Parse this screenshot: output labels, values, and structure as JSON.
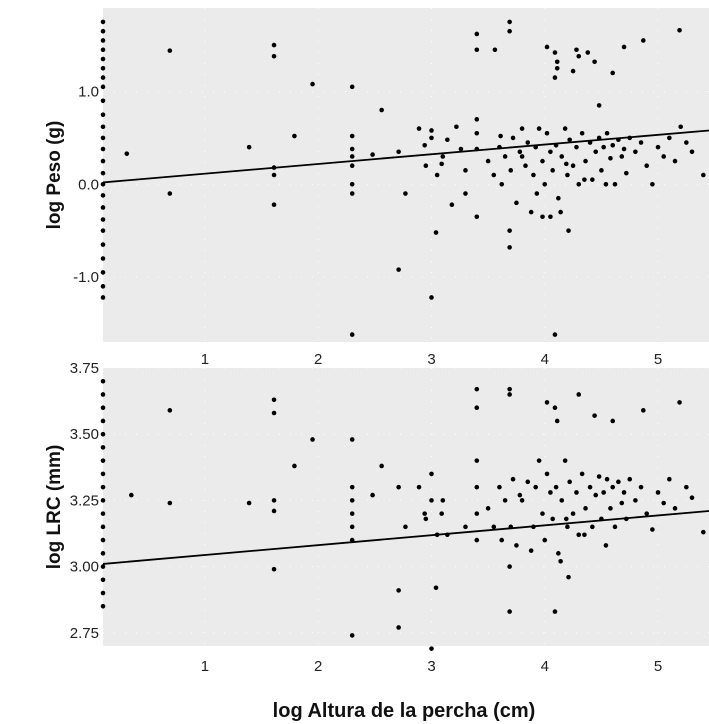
{
  "chart_data": [
    {
      "type": "scatter",
      "title": "",
      "xlabel": "",
      "ylabel": "log Peso (g)",
      "xlim": [
        0.1,
        5.45
      ],
      "ylim": [
        -1.7,
        1.9
      ],
      "x_ticks": [
        1,
        2,
        3,
        4,
        5
      ],
      "x_tick_labels": [
        "1",
        "2",
        "3",
        "4",
        "5"
      ],
      "y_ticks": [
        -1.0,
        0.0,
        1.0
      ],
      "y_tick_labels": [
        "-1.0",
        "0.0",
        "1.0"
      ],
      "grid": true,
      "background": "#ebebeb",
      "point_color": "#000000",
      "fit_line": {
        "x": [
          0.1,
          5.45
        ],
        "y": [
          0.02,
          0.58
        ]
      },
      "points": [
        [
          0.1,
          1.75
        ],
        [
          0.1,
          1.65
        ],
        [
          0.1,
          1.55
        ],
        [
          0.1,
          1.45
        ],
        [
          0.1,
          1.35
        ],
        [
          0.1,
          1.25
        ],
        [
          0.1,
          1.15
        ],
        [
          0.1,
          1.05
        ],
        [
          0.1,
          0.9
        ],
        [
          0.1,
          0.75
        ],
        [
          0.1,
          0.62
        ],
        [
          0.1,
          0.5
        ],
        [
          0.1,
          0.38
        ],
        [
          0.1,
          0.25
        ],
        [
          0.1,
          0.12
        ],
        [
          0.1,
          0.0
        ],
        [
          0.1,
          -0.12
        ],
        [
          0.1,
          -0.25
        ],
        [
          0.1,
          -0.38
        ],
        [
          0.1,
          -0.5
        ],
        [
          0.1,
          -0.65
        ],
        [
          0.1,
          -0.8
        ],
        [
          0.1,
          -0.95
        ],
        [
          0.1,
          -1.1
        ],
        [
          0.1,
          -1.22
        ],
        [
          0.31,
          0.33
        ],
        [
          0.69,
          1.44
        ],
        [
          0.69,
          -0.1
        ],
        [
          1.39,
          0.4
        ],
        [
          1.61,
          1.5
        ],
        [
          1.61,
          1.38
        ],
        [
          1.61,
          0.18
        ],
        [
          1.61,
          0.1
        ],
        [
          1.61,
          -0.22
        ],
        [
          1.79,
          0.52
        ],
        [
          1.95,
          1.08
        ],
        [
          2.3,
          1.05
        ],
        [
          2.3,
          0.52
        ],
        [
          2.3,
          0.38
        ],
        [
          2.3,
          0.3
        ],
        [
          2.3,
          0.2
        ],
        [
          2.3,
          0.0
        ],
        [
          2.3,
          -0.1
        ],
        [
          2.3,
          -1.62
        ],
        [
          2.48,
          0.32
        ],
        [
          2.56,
          0.8
        ],
        [
          2.71,
          0.35
        ],
        [
          2.71,
          -0.92
        ],
        [
          2.77,
          -0.1
        ],
        [
          2.89,
          0.6
        ],
        [
          2.94,
          0.42
        ],
        [
          3.0,
          0.58
        ],
        [
          3.0,
          0.5
        ],
        [
          3.0,
          -1.22
        ],
        [
          3.04,
          -0.52
        ],
        [
          3.09,
          0.22
        ],
        [
          3.14,
          0.48
        ],
        [
          3.18,
          -0.22
        ],
        [
          3.22,
          0.62
        ],
        [
          3.26,
          0.38
        ],
        [
          3.3,
          -0.1
        ],
        [
          3.4,
          1.62
        ],
        [
          3.4,
          1.45
        ],
        [
          3.4,
          0.7
        ],
        [
          3.4,
          0.55
        ],
        [
          3.4,
          0.38
        ],
        [
          3.4,
          -0.35
        ],
        [
          3.56,
          1.45
        ],
        [
          3.61,
          0.52
        ],
        [
          3.69,
          1.75
        ],
        [
          3.69,
          1.65
        ],
        [
          3.69,
          -0.5
        ],
        [
          3.69,
          -0.68
        ],
        [
          3.8,
          0.6
        ],
        [
          3.83,
          0.2
        ],
        [
          3.93,
          -0.1
        ],
        [
          3.98,
          -0.35
        ],
        [
          4.02,
          1.48
        ],
        [
          4.09,
          1.15
        ],
        [
          4.09,
          1.42
        ],
        [
          4.11,
          1.32
        ],
        [
          4.11,
          1.25
        ],
        [
          4.09,
          -1.62
        ],
        [
          4.21,
          -0.5
        ],
        [
          4.25,
          1.22
        ],
        [
          4.28,
          1.45
        ],
        [
          4.3,
          1.38
        ],
        [
          4.38,
          1.42
        ],
        [
          4.44,
          1.32
        ],
        [
          4.48,
          0.85
        ],
        [
          4.6,
          1.2
        ],
        [
          4.7,
          1.48
        ],
        [
          4.87,
          1.55
        ],
        [
          5.19,
          1.66
        ],
        [
          5.2,
          0.62
        ],
        [
          5.4,
          0.1
        ],
        [
          3.8,
          0.3
        ],
        [
          3.85,
          0.45
        ],
        [
          3.9,
          0.1
        ],
        [
          3.95,
          0.6
        ],
        [
          3.98,
          0.25
        ],
        [
          4.0,
          0.0
        ],
        [
          4.02,
          0.55
        ],
        [
          4.05,
          0.35
        ],
        [
          4.07,
          0.15
        ],
        [
          4.1,
          0.42
        ],
        [
          4.12,
          -0.15
        ],
        [
          4.15,
          0.3
        ],
        [
          4.18,
          0.6
        ],
        [
          4.2,
          0.1
        ],
        [
          4.22,
          0.48
        ],
        [
          4.25,
          0.2
        ],
        [
          4.28,
          0.4
        ],
        [
          4.3,
          0.0
        ],
        [
          4.33,
          0.55
        ],
        [
          4.36,
          0.25
        ],
        [
          4.4,
          0.45
        ],
        [
          4.42,
          0.05
        ],
        [
          4.45,
          0.35
        ],
        [
          4.48,
          0.5
        ],
        [
          4.5,
          0.15
        ],
        [
          4.52,
          0.4
        ],
        [
          4.55,
          0.55
        ],
        [
          4.58,
          0.28
        ],
        [
          4.6,
          0.42
        ],
        [
          4.62,
          0.0
        ],
        [
          4.65,
          0.48
        ],
        [
          4.68,
          0.3
        ],
        [
          4.7,
          0.38
        ],
        [
          4.72,
          0.12
        ],
        [
          4.75,
          0.5
        ],
        [
          4.8,
          0.35
        ],
        [
          4.85,
          0.45
        ],
        [
          4.9,
          0.2
        ],
        [
          4.95,
          0.0
        ],
        [
          5.0,
          0.4
        ],
        [
          5.05,
          0.3
        ],
        [
          5.1,
          0.5
        ],
        [
          5.15,
          0.25
        ],
        [
          5.25,
          0.45
        ],
        [
          5.3,
          0.35
        ],
        [
          3.5,
          0.25
        ],
        [
          3.55,
          0.1
        ],
        [
          3.6,
          0.4
        ],
        [
          3.62,
          0.0
        ],
        [
          3.65,
          0.3
        ],
        [
          3.7,
          0.15
        ],
        [
          3.72,
          0.5
        ],
        [
          3.75,
          -0.2
        ],
        [
          3.78,
          0.35
        ],
        [
          3.88,
          -0.3
        ],
        [
          3.92,
          0.4
        ],
        [
          4.05,
          -0.35
        ],
        [
          4.14,
          -0.3
        ],
        [
          4.19,
          0.22
        ],
        [
          4.35,
          0.05
        ],
        [
          4.54,
          0.0
        ],
        [
          3.3,
          0.15
        ],
        [
          3.1,
          0.3
        ],
        [
          3.05,
          0.1
        ],
        [
          2.95,
          0.2
        ]
      ]
    },
    {
      "type": "scatter",
      "title": "",
      "xlabel": "log Altura de la percha (cm)",
      "ylabel": "log LRC (mm)",
      "xlim": [
        0.1,
        5.45
      ],
      "ylim": [
        2.7,
        3.75
      ],
      "x_ticks": [
        1,
        2,
        3,
        4,
        5
      ],
      "x_tick_labels": [
        "1",
        "2",
        "3",
        "4",
        "5"
      ],
      "y_ticks": [
        2.75,
        3.0,
        3.25,
        3.5,
        3.75
      ],
      "y_tick_labels": [
        "2.75",
        "3.00",
        "3.25",
        "3.50",
        "3.75"
      ],
      "grid": true,
      "background": "#ebebeb",
      "point_color": "#000000",
      "fit_line": {
        "x": [
          0.1,
          5.45
        ],
        "y": [
          3.01,
          3.21
        ]
      },
      "points": [
        [
          0.1,
          3.7
        ],
        [
          0.1,
          3.65
        ],
        [
          0.1,
          3.6
        ],
        [
          0.1,
          3.55
        ],
        [
          0.1,
          3.5
        ],
        [
          0.1,
          3.45
        ],
        [
          0.1,
          3.4
        ],
        [
          0.1,
          3.35
        ],
        [
          0.1,
          3.3
        ],
        [
          0.1,
          3.25
        ],
        [
          0.1,
          3.2
        ],
        [
          0.1,
          3.15
        ],
        [
          0.1,
          3.1
        ],
        [
          0.1,
          3.05
        ],
        [
          0.1,
          3.0
        ],
        [
          0.1,
          2.95
        ],
        [
          0.1,
          2.9
        ],
        [
          0.1,
          2.85
        ],
        [
          0.35,
          3.27
        ],
        [
          0.69,
          3.59
        ],
        [
          0.69,
          3.24
        ],
        [
          1.39,
          3.24
        ],
        [
          1.61,
          3.63
        ],
        [
          1.61,
          3.58
        ],
        [
          1.61,
          3.25
        ],
        [
          1.61,
          3.21
        ],
        [
          1.61,
          2.99
        ],
        [
          1.79,
          3.38
        ],
        [
          1.95,
          3.48
        ],
        [
          2.3,
          3.48
        ],
        [
          2.3,
          3.3
        ],
        [
          2.3,
          3.25
        ],
        [
          2.3,
          3.2
        ],
        [
          2.3,
          3.15
        ],
        [
          2.3,
          3.1
        ],
        [
          2.3,
          2.74
        ],
        [
          2.48,
          3.27
        ],
        [
          2.56,
          3.38
        ],
        [
          2.71,
          3.3
        ],
        [
          2.71,
          2.91
        ],
        [
          2.71,
          2.77
        ],
        [
          2.77,
          3.15
        ],
        [
          2.89,
          3.3
        ],
        [
          2.94,
          3.2
        ],
        [
          3.0,
          3.35
        ],
        [
          3.0,
          3.25
        ],
        [
          3.0,
          2.69
        ],
        [
          3.04,
          2.92
        ],
        [
          3.09,
          3.2
        ],
        [
          3.14,
          3.12
        ],
        [
          3.4,
          3.67
        ],
        [
          3.4,
          3.6
        ],
        [
          3.4,
          3.4
        ],
        [
          3.4,
          3.3
        ],
        [
          3.4,
          3.2
        ],
        [
          3.4,
          3.1
        ],
        [
          3.69,
          3.67
        ],
        [
          3.69,
          3.65
        ],
        [
          3.69,
          3.0
        ],
        [
          3.69,
          2.83
        ],
        [
          4.09,
          2.83
        ],
        [
          4.02,
          3.62
        ],
        [
          4.09,
          3.6
        ],
        [
          4.11,
          3.55
        ],
        [
          4.21,
          2.96
        ],
        [
          4.3,
          3.65
        ],
        [
          4.44,
          3.57
        ],
        [
          4.6,
          3.55
        ],
        [
          4.87,
          3.59
        ],
        [
          5.19,
          3.62
        ],
        [
          5.4,
          3.13
        ],
        [
          3.8,
          3.25
        ],
        [
          3.85,
          3.32
        ],
        [
          3.9,
          3.15
        ],
        [
          3.95,
          3.4
        ],
        [
          3.98,
          3.2
        ],
        [
          4.0,
          3.1
        ],
        [
          4.02,
          3.35
        ],
        [
          4.05,
          3.28
        ],
        [
          4.07,
          3.18
        ],
        [
          4.1,
          3.3
        ],
        [
          4.12,
          3.05
        ],
        [
          4.15,
          3.25
        ],
        [
          4.18,
          3.4
        ],
        [
          4.2,
          3.15
        ],
        [
          4.22,
          3.32
        ],
        [
          4.25,
          3.2
        ],
        [
          4.28,
          3.28
        ],
        [
          4.3,
          3.12
        ],
        [
          4.33,
          3.35
        ],
        [
          4.36,
          3.22
        ],
        [
          4.4,
          3.3
        ],
        [
          4.42,
          3.15
        ],
        [
          4.45,
          3.27
        ],
        [
          4.48,
          3.34
        ],
        [
          4.5,
          3.18
        ],
        [
          4.52,
          3.28
        ],
        [
          4.55,
          3.33
        ],
        [
          4.58,
          3.22
        ],
        [
          4.6,
          3.3
        ],
        [
          4.62,
          3.15
        ],
        [
          4.65,
          3.32
        ],
        [
          4.68,
          3.24
        ],
        [
          4.7,
          3.28
        ],
        [
          4.72,
          3.18
        ],
        [
          4.75,
          3.33
        ],
        [
          4.8,
          3.25
        ],
        [
          4.85,
          3.3
        ],
        [
          4.9,
          3.2
        ],
        [
          4.95,
          3.14
        ],
        [
          5.0,
          3.28
        ],
        [
          5.05,
          3.24
        ],
        [
          5.1,
          3.33
        ],
        [
          5.15,
          3.22
        ],
        [
          5.25,
          3.3
        ],
        [
          5.3,
          3.26
        ],
        [
          3.5,
          3.22
        ],
        [
          3.55,
          3.15
        ],
        [
          3.6,
          3.3
        ],
        [
          3.62,
          3.1
        ],
        [
          3.65,
          3.25
        ],
        [
          3.7,
          3.15
        ],
        [
          3.72,
          3.33
        ],
        [
          3.75,
          3.08
        ],
        [
          3.78,
          3.27
        ],
        [
          3.88,
          3.06
        ],
        [
          3.92,
          3.3
        ],
        [
          4.14,
          3.02
        ],
        [
          4.19,
          3.18
        ],
        [
          4.35,
          3.12
        ],
        [
          4.54,
          3.08
        ],
        [
          3.3,
          3.15
        ],
        [
          3.1,
          3.25
        ],
        [
          3.05,
          3.12
        ],
        [
          2.95,
          3.18
        ]
      ]
    }
  ]
}
